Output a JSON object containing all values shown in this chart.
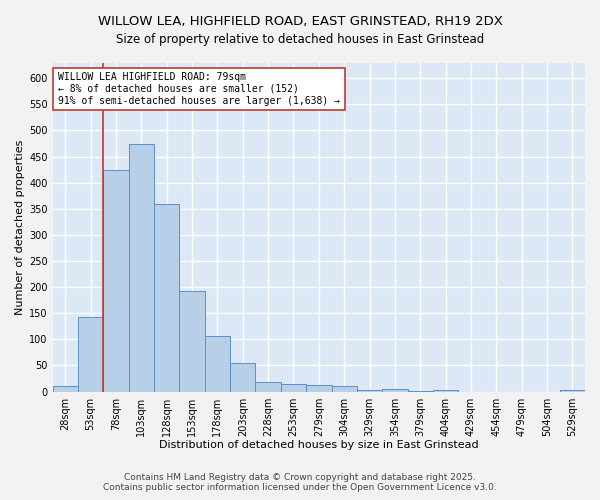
{
  "title_line1": "WILLOW LEA, HIGHFIELD ROAD, EAST GRINSTEAD, RH19 2DX",
  "title_line2": "Size of property relative to detached houses in East Grinstead",
  "xlabel": "Distribution of detached houses by size in East Grinstead",
  "ylabel": "Number of detached properties",
  "bar_labels": [
    "28sqm",
    "53sqm",
    "78sqm",
    "103sqm",
    "128sqm",
    "153sqm",
    "178sqm",
    "203sqm",
    "228sqm",
    "253sqm",
    "279sqm",
    "304sqm",
    "329sqm",
    "354sqm",
    "379sqm",
    "404sqm",
    "429sqm",
    "454sqm",
    "479sqm",
    "504sqm",
    "529sqm"
  ],
  "bar_values": [
    10,
    143,
    424,
    474,
    360,
    193,
    106,
    54,
    18,
    15,
    13,
    10,
    4,
    5,
    1,
    4,
    0,
    0,
    0,
    0,
    4
  ],
  "bar_color": "#b8cfe8",
  "bar_edge_color": "#5b8fc9",
  "bg_color": "#dce8f5",
  "grid_color": "#ffffff",
  "vline_color": "#c0392b",
  "annotation_title": "WILLOW LEA HIGHFIELD ROAD: 79sqm",
  "annotation_line1": "← 8% of detached houses are smaller (152)",
  "annotation_line2": "91% of semi-detached houses are larger (1,638) →",
  "annotation_box_color": "#ffffff",
  "annotation_box_edge": "#c0392b",
  "ylim": [
    0,
    630
  ],
  "yticks": [
    0,
    50,
    100,
    150,
    200,
    250,
    300,
    350,
    400,
    450,
    500,
    550,
    600
  ],
  "footer_line1": "Contains HM Land Registry data © Crown copyright and database right 2025.",
  "footer_line2": "Contains public sector information licensed under the Open Government Licence v3.0.",
  "title_fontsize": 9.5,
  "subtitle_fontsize": 8.5,
  "axis_label_fontsize": 8,
  "tick_fontsize": 7,
  "annotation_fontsize": 7,
  "footer_fontsize": 6.5,
  "fig_bg": "#f2f2f2"
}
